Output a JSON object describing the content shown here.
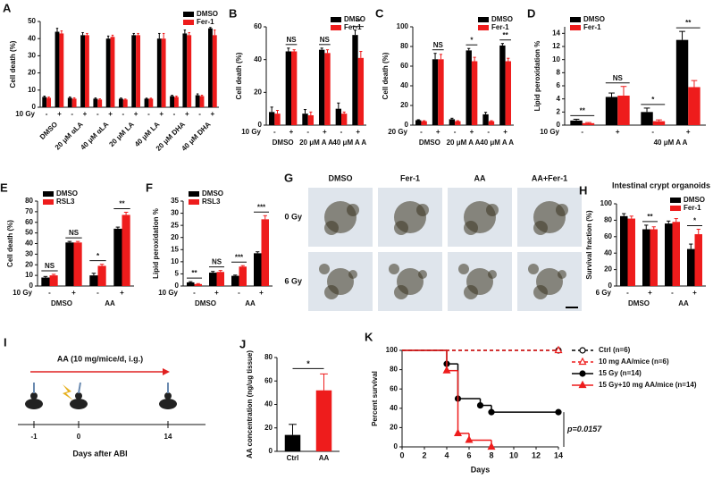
{
  "chart_data": [
    {
      "label": "A",
      "type": "bar",
      "y_label": "Cell death (%)",
      "x_row_label": "10 Gy",
      "legend": "upper right",
      "categories": [
        "-",
        "+",
        "-",
        "+",
        "-",
        "+",
        "-",
        "+",
        "-",
        "+",
        "-",
        "+",
        "-",
        "+"
      ],
      "groups": [
        "DMSO",
        "20 μM αLA",
        "40 μM αLA",
        "20 μM LA",
        "40 μM LA",
        "20 μM DHA",
        "40 μM DHA"
      ],
      "ylim": [
        0,
        50
      ],
      "yticks": [
        0,
        10,
        20,
        30,
        40,
        50
      ],
      "series": [
        {
          "name": "DMSO",
          "color": "#000000",
          "values": [
            6,
            44,
            5.5,
            42,
            5,
            40,
            5,
            42,
            5,
            40,
            6.5,
            43,
            7,
            46
          ],
          "errors": [
            0.5,
            2,
            0.5,
            1.5,
            0.4,
            1.5,
            0.4,
            1,
            0.3,
            3,
            0.5,
            2,
            0.8,
            0.5
          ]
        },
        {
          "name": "Fer-1",
          "color": "#ee1c1c",
          "values": [
            5.5,
            43,
            5,
            42,
            4.5,
            41,
            4.5,
            42,
            5,
            40,
            6,
            42,
            6.5,
            42
          ],
          "errors": [
            0.5,
            1.5,
            0.5,
            1,
            0.4,
            1,
            0.3,
            1,
            0.3,
            3,
            0.5,
            1.5,
            0.5,
            3
          ]
        }
      ]
    },
    {
      "label": "B",
      "type": "bar",
      "y_label": "Cell death (%)",
      "x_row_label": "10 Gy",
      "legend": "upper right",
      "categories": [
        "-",
        "+",
        "-",
        "+",
        "-",
        "+"
      ],
      "groups": [
        "DMSO",
        "20 μM A A",
        "40 μM A A"
      ],
      "ylim": [
        0,
        60
      ],
      "yticks": [
        0,
        20,
        40,
        60
      ],
      "annotations": [
        null,
        "NS",
        null,
        "NS",
        null,
        "**"
      ],
      "series": [
        {
          "name": "DMSO",
          "color": "#000000",
          "values": [
            8,
            45,
            7,
            46,
            10,
            55
          ],
          "errors": [
            3,
            2,
            2.5,
            1,
            3.5,
            3
          ]
        },
        {
          "name": "Fer-1",
          "color": "#ee1c1c",
          "values": [
            7,
            45,
            6,
            44,
            7,
            41
          ],
          "errors": [
            2,
            1,
            2,
            2,
            1,
            4
          ]
        }
      ]
    },
    {
      "label": "C",
      "type": "bar",
      "y_label": "Cell death (%)",
      "x_row_label": "20 Gy",
      "legend": "upper right",
      "categories": [
        "-",
        "+",
        "-",
        "+",
        "-",
        "+"
      ],
      "groups": [
        "DMSO",
        "20 μM A A",
        "40 μM A A"
      ],
      "ylim": [
        0,
        100
      ],
      "yticks": [
        0,
        20,
        40,
        60,
        80,
        100
      ],
      "annotations": [
        null,
        "NS",
        null,
        "*",
        null,
        "**"
      ],
      "series": [
        {
          "name": "DMSO",
          "color": "#000000",
          "values": [
            5,
            67,
            6,
            76,
            11,
            81
          ],
          "errors": [
            0.5,
            6,
            1,
            2,
            2,
            2
          ]
        },
        {
          "name": "Fer-1",
          "color": "#ee1c1c",
          "values": [
            4,
            67,
            4,
            65,
            4,
            65
          ],
          "errors": [
            0.5,
            5,
            0.5,
            4,
            0.5,
            3
          ]
        }
      ]
    },
    {
      "label": "D",
      "type": "bar",
      "y_label": "Lipid peroxidation %",
      "x_row_label": "10 Gy",
      "legend": "upper left",
      "categories": [
        "-",
        "+",
        "-",
        "+"
      ],
      "groups": [
        null,
        "40 μM A A"
      ],
      "ylim": [
        0,
        15
      ],
      "yticks": [
        0,
        2,
        4,
        6,
        8,
        10,
        12,
        14
      ],
      "annotations": [
        "**",
        "NS",
        "*",
        "**"
      ],
      "series": [
        {
          "name": "DMSO",
          "color": "#000000",
          "values": [
            0.7,
            4.3,
            2,
            13
          ],
          "errors": [
            0.2,
            0.6,
            0.6,
            1.3
          ]
        },
        {
          "name": "Fer-1",
          "color": "#ee1c1c",
          "values": [
            0.3,
            4.5,
            0.6,
            5.8
          ],
          "errors": [
            0.1,
            1.4,
            0.2,
            1
          ]
        }
      ]
    },
    {
      "label": "E",
      "type": "bar",
      "y_label": "Cell death (%)",
      "x_row_label": "10 Gy",
      "legend": "upper left",
      "categories": [
        "-",
        "+",
        "-",
        "+"
      ],
      "groups": [
        "DMSO",
        "AA"
      ],
      "ylim": [
        0,
        80
      ],
      "yticks": [
        0,
        10,
        20,
        30,
        40,
        50,
        60,
        70,
        80
      ],
      "annotations": [
        "NS",
        "NS",
        "*",
        "**"
      ],
      "series": [
        {
          "name": "DMSO",
          "color": "#000000",
          "values": [
            8,
            41,
            10,
            54
          ],
          "errors": [
            1,
            1,
            2,
            1.5
          ]
        },
        {
          "name": "RSL3",
          "color": "#ee1c1c",
          "values": [
            10,
            41,
            19,
            67
          ],
          "errors": [
            1,
            1,
            1.5,
            2.5
          ]
        }
      ]
    },
    {
      "label": "F",
      "type": "bar",
      "y_label": "Lipid peroxidation %",
      "x_row_label": "10 Gy",
      "legend": "upper left",
      "categories": [
        "-",
        "+",
        "-",
        "+"
      ],
      "groups": [
        "DMSO",
        "AA"
      ],
      "ylim": [
        0,
        35
      ],
      "yticks": [
        0,
        5,
        10,
        15,
        20,
        25,
        30,
        35
      ],
      "annotations": [
        "**",
        "NS",
        "***",
        "***"
      ],
      "series": [
        {
          "name": "DMSO",
          "color": "#000000",
          "values": [
            1.5,
            5.5,
            4.2,
            13.5
          ],
          "errors": [
            0.3,
            0.5,
            0.3,
            0.6
          ]
        },
        {
          "name": "RSL3",
          "color": "#ee1c1c",
          "values": [
            0.8,
            5.8,
            8,
            27.5
          ],
          "errors": [
            0.2,
            0.6,
            0.4,
            1.5
          ]
        }
      ]
    },
    {
      "label": "H",
      "type": "bar",
      "title": "Intestinal crypt organoids",
      "y_label": "Survival fraction (%)",
      "x_row_label": "6 Gy",
      "legend": "upper right",
      "categories": [
        "-",
        "+",
        "-",
        "+"
      ],
      "groups": [
        "DMSO",
        "AA"
      ],
      "ylim": [
        0,
        100
      ],
      "yticks": [
        0,
        20,
        40,
        60,
        80,
        100
      ],
      "annotations": [
        null,
        "**",
        null,
        "*"
      ],
      "series": [
        {
          "name": "DMSO",
          "color": "#000000",
          "values": [
            85,
            69,
            76,
            45
          ],
          "errors": [
            3,
            5,
            3,
            6
          ]
        },
        {
          "name": "Fer-1",
          "color": "#ee1c1c",
          "values": [
            82,
            69,
            78,
            63
          ],
          "errors": [
            3,
            3,
            4,
            6
          ]
        }
      ]
    },
    {
      "label": "J",
      "type": "bar",
      "y_label": "AA concentration (ng/ug tissue)",
      "categories": [
        "Ctrl",
        "AA"
      ],
      "values": [
        14,
        52
      ],
      "errors": [
        9,
        14
      ],
      "colors": [
        "#000000",
        "#ee1c1c"
      ],
      "ylim": [
        0,
        80
      ],
      "yticks": [
        0,
        20,
        40,
        60,
        80
      ],
      "annotation": "*"
    },
    {
      "label": "K",
      "type": "line",
      "y_label": "Percent survival",
      "x_label": "Days",
      "annotation": "p=0.0157",
      "xlim": [
        0,
        14
      ],
      "xticks": [
        0,
        2,
        4,
        6,
        8,
        10,
        12,
        14
      ],
      "ylim": [
        0,
        100
      ],
      "yticks": [
        0,
        20,
        40,
        60,
        80,
        100
      ],
      "series": [
        {
          "name": "Ctrl (n=6)",
          "color": "#000000",
          "marker": "circle-open",
          "line_style": "dashed",
          "x": [
            0,
            14
          ],
          "values": [
            100,
            100
          ]
        },
        {
          "name": "10 mg AA/mice (n=6)",
          "color": "#ee1c1c",
          "marker": "triangle-open",
          "line_style": "dashed",
          "x": [
            0,
            14
          ],
          "values": [
            100,
            100
          ]
        },
        {
          "name": "15 Gy (n=14)",
          "color": "#000000",
          "marker": "circle",
          "line_style": "solid",
          "x": [
            0,
            4,
            5,
            7,
            8,
            14
          ],
          "values": [
            100,
            86,
            50,
            43,
            36,
            36
          ]
        },
        {
          "name": "15 Gy+10 mg AA/mice (n=14)",
          "color": "#ee1c1c",
          "marker": "triangle",
          "line_style": "solid",
          "x": [
            0,
            4,
            5,
            6,
            8
          ],
          "values": [
            100,
            79,
            14,
            7,
            0
          ]
        }
      ]
    }
  ],
  "panel_g": {
    "label": "G",
    "columns": [
      "DMSO",
      "Fer-1",
      "AA",
      "AA+Fer-1"
    ],
    "rows": [
      "0 Gy",
      "6 Gy"
    ]
  },
  "panel_i": {
    "label": "I",
    "treatment": "AA (10 mg/mice/d, i.g.)",
    "ticks": [
      "-1",
      "0",
      "14"
    ],
    "axis_label": "Days after ABI"
  }
}
